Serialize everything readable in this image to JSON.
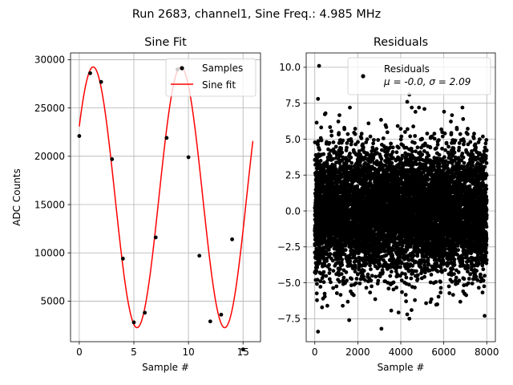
{
  "figure": {
    "suptitle": "Run 2683, channel1, Sine Freq.: 4.985 MHz"
  },
  "chart_data": [
    {
      "type": "scatter",
      "title": "Sine Fit",
      "xlabel": "Sample #",
      "ylabel": "ADC Counts",
      "xlim": [
        -0.8,
        16.6
      ],
      "ylim": [
        800,
        30700
      ],
      "xticks": [
        0,
        5,
        10,
        15
      ],
      "yticks": [
        5000,
        10000,
        15000,
        20000,
        25000,
        30000
      ],
      "grid": true,
      "legend_position": "top-right",
      "colors": {
        "samples": "#000000",
        "fit": "#ff0000"
      },
      "samples": {
        "name": "Samples",
        "x": [
          0,
          1,
          2,
          3,
          4,
          5,
          6,
          7,
          8,
          9,
          10,
          11,
          12,
          13,
          14,
          15
        ],
        "y": [
          22100,
          28600,
          27700,
          19700,
          9400,
          2800,
          3800,
          11600,
          21900,
          29000,
          19900,
          9700,
          2900,
          3600,
          11400,
          0
        ]
      },
      "fit": {
        "name": "Sine fit",
        "model": "offset + amplitude * sin(2*pi*frequency*x + phase)",
        "offset": 15750,
        "amplitude": 13500,
        "frequency": 0.1245,
        "phase": 0.575,
        "x_range": [
          0,
          15.9
        ]
      }
    },
    {
      "type": "scatter",
      "title": "Residuals",
      "xlabel": "Sample #",
      "ylabel": "",
      "xlim": [
        -400,
        8400
      ],
      "ylim": [
        -9.1,
        11.0
      ],
      "xticks": [
        0,
        2000,
        4000,
        6000,
        8000
      ],
      "yticks": [
        -7.5,
        -5.0,
        -2.5,
        0.0,
        2.5,
        5.0,
        7.5,
        10.0
      ],
      "grid": true,
      "legend_position": "top-right",
      "colors": {
        "points": "#000000"
      },
      "series": {
        "name": "Residuals",
        "stats": "μ = -0.0, σ = 2.09",
        "count": 8000,
        "x_range": [
          0,
          7999
        ],
        "mean": 0.0,
        "std": 2.09,
        "outliers": [
          {
            "x": 200,
            "y": 10.1
          },
          {
            "x": 150,
            "y": 7.8
          },
          {
            "x": 4400,
            "y": 8.1
          },
          {
            "x": 4300,
            "y": 7.6
          },
          {
            "x": 150,
            "y": -8.4
          },
          {
            "x": 1600,
            "y": -7.6
          },
          {
            "x": 3100,
            "y": -8.2
          },
          {
            "x": 4300,
            "y": -7.2
          },
          {
            "x": 4400,
            "y": -7.5
          },
          {
            "x": 4500,
            "y": -6.9
          },
          {
            "x": 7900,
            "y": -7.3
          },
          {
            "x": 6900,
            "y": 6.4
          },
          {
            "x": 5100,
            "y": 7.1
          },
          {
            "x": 2500,
            "y": 6.1
          },
          {
            "x": 500,
            "y": 6.8
          },
          {
            "x": 1300,
            "y": -6.6
          },
          {
            "x": 5700,
            "y": -6.5
          }
        ]
      }
    }
  ]
}
